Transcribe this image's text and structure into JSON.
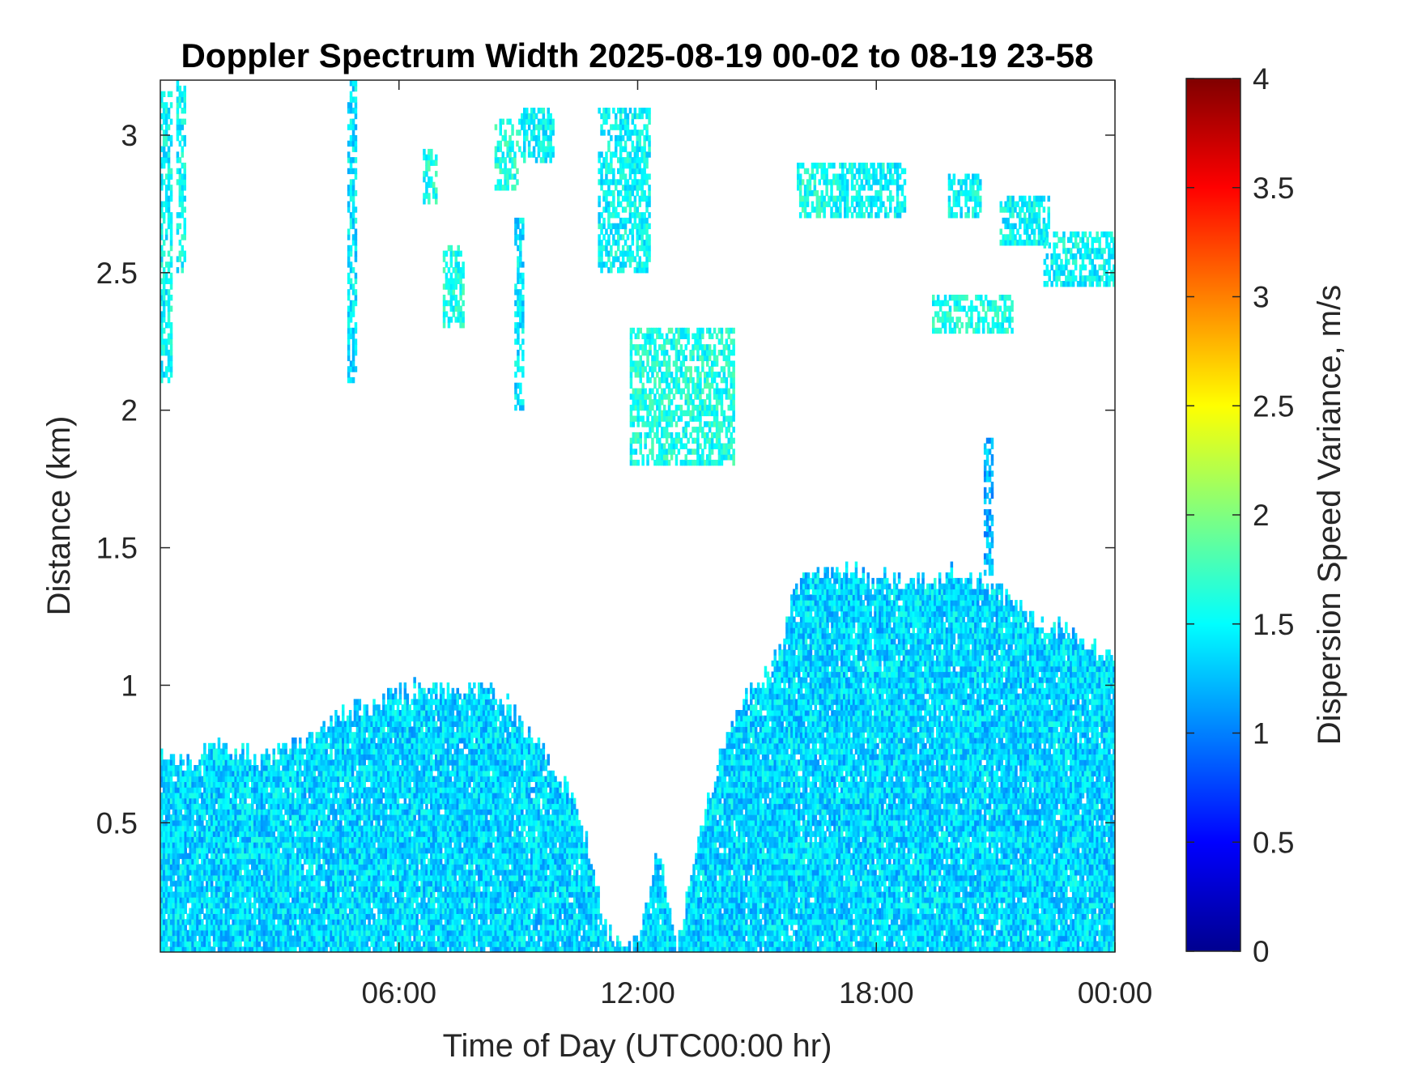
{
  "chart_data": {
    "type": "heatmap",
    "title": "Doppler Spectrum Width 2025-08-19 00-02 to 08-19 23-58",
    "xlabel": "Time of Day (UTC00:00 hr)",
    "ylabel": "Distance (km)",
    "xlim": [
      0,
      24
    ],
    "ylim": [
      0.03,
      3.2
    ],
    "x_ticks": [
      {
        "value": 6,
        "label": "06:00"
      },
      {
        "value": 12,
        "label": "12:00"
      },
      {
        "value": 18,
        "label": "18:00"
      },
      {
        "value": 24,
        "label": "00:00"
      }
    ],
    "y_ticks": [
      {
        "value": 0.5,
        "label": "0.5"
      },
      {
        "value": 1,
        "label": "1"
      },
      {
        "value": 1.5,
        "label": "1.5"
      },
      {
        "value": 2,
        "label": "2"
      },
      {
        "value": 2.5,
        "label": "2.5"
      },
      {
        "value": 3,
        "label": "3"
      }
    ],
    "colorbar": {
      "label": "Dispersion Speed Variance, m/s",
      "colormap": "jet",
      "range": [
        0,
        4
      ],
      "ticks": [
        {
          "value": 0,
          "label": "0"
        },
        {
          "value": 0.5,
          "label": "0.5"
        },
        {
          "value": 1,
          "label": "1"
        },
        {
          "value": 1.5,
          "label": "1.5"
        },
        {
          "value": 2,
          "label": "2"
        },
        {
          "value": 2.5,
          "label": "2.5"
        },
        {
          "value": 3,
          "label": "3"
        },
        {
          "value": 3.5,
          "label": "3.5"
        },
        {
          "value": 4,
          "label": "4"
        }
      ]
    },
    "boundary_layer_top_km": {
      "time_hr": [
        0,
        0.5,
        1.5,
        2.5,
        3.5,
        4.5,
        5.5,
        6.5,
        7.5,
        8.5,
        9.5,
        10.5,
        11.2,
        11.6,
        12.0,
        12.5,
        13.0,
        13.5,
        14.0,
        14.5,
        15.0,
        15.5,
        16.0,
        17.0,
        18.0,
        19.0,
        20.0,
        21.0,
        22.0,
        23.0,
        24.0
      ],
      "top_km": [
        0.76,
        0.7,
        0.78,
        0.72,
        0.79,
        0.88,
        0.93,
        0.98,
        0.97,
        0.96,
        0.78,
        0.55,
        0.1,
        0.05,
        0.05,
        0.4,
        0.05,
        0.4,
        0.7,
        0.9,
        1.0,
        1.08,
        1.35,
        1.42,
        1.38,
        1.35,
        1.4,
        1.35,
        1.22,
        1.18,
        1.08
      ],
      "typical_width_m_s": 1.35
    },
    "cloud_patches": [
      {
        "t0": 0.0,
        "t1": 0.3,
        "z0": 2.1,
        "z1": 3.15,
        "width_m_s": 1.5
      },
      {
        "t0": 0.4,
        "t1": 0.6,
        "z0": 2.5,
        "z1": 3.2,
        "width_m_s": 1.5
      },
      {
        "t0": 4.7,
        "t1": 4.9,
        "z0": 2.1,
        "z1": 3.2,
        "width_m_s": 1.4
      },
      {
        "t0": 6.6,
        "t1": 6.9,
        "z0": 2.75,
        "z1": 2.95,
        "width_m_s": 1.6
      },
      {
        "t0": 7.1,
        "t1": 7.6,
        "z0": 2.3,
        "z1": 2.6,
        "width_m_s": 1.6
      },
      {
        "t0": 8.4,
        "t1": 9.0,
        "z0": 2.8,
        "z1": 3.05,
        "width_m_s": 1.6
      },
      {
        "t0": 9.0,
        "t1": 9.9,
        "z0": 2.9,
        "z1": 3.1,
        "width_m_s": 1.5
      },
      {
        "t0": 8.9,
        "t1": 9.1,
        "z0": 2.0,
        "z1": 2.7,
        "width_m_s": 1.4
      },
      {
        "t0": 11.0,
        "t1": 12.3,
        "z0": 2.5,
        "z1": 3.1,
        "width_m_s": 1.5
      },
      {
        "t0": 11.8,
        "t1": 14.4,
        "z0": 1.8,
        "z1": 2.3,
        "width_m_s": 1.6
      },
      {
        "t0": 16.0,
        "t1": 17.0,
        "z0": 2.7,
        "z1": 2.9,
        "width_m_s": 1.6
      },
      {
        "t0": 17.0,
        "t1": 18.7,
        "z0": 2.7,
        "z1": 2.9,
        "width_m_s": 1.5
      },
      {
        "t0": 19.8,
        "t1": 20.6,
        "z0": 2.7,
        "z1": 2.85,
        "width_m_s": 1.5
      },
      {
        "t0": 21.1,
        "t1": 22.3,
        "z0": 2.6,
        "z1": 2.78,
        "width_m_s": 1.5
      },
      {
        "t0": 22.2,
        "t1": 24.0,
        "z0": 2.45,
        "z1": 2.65,
        "width_m_s": 1.5
      },
      {
        "t0": 19.4,
        "t1": 21.4,
        "z0": 2.28,
        "z1": 2.42,
        "width_m_s": 1.6
      },
      {
        "t0": 20.7,
        "t1": 20.9,
        "z0": 1.4,
        "z1": 1.9,
        "width_m_s": 1.2
      }
    ]
  }
}
